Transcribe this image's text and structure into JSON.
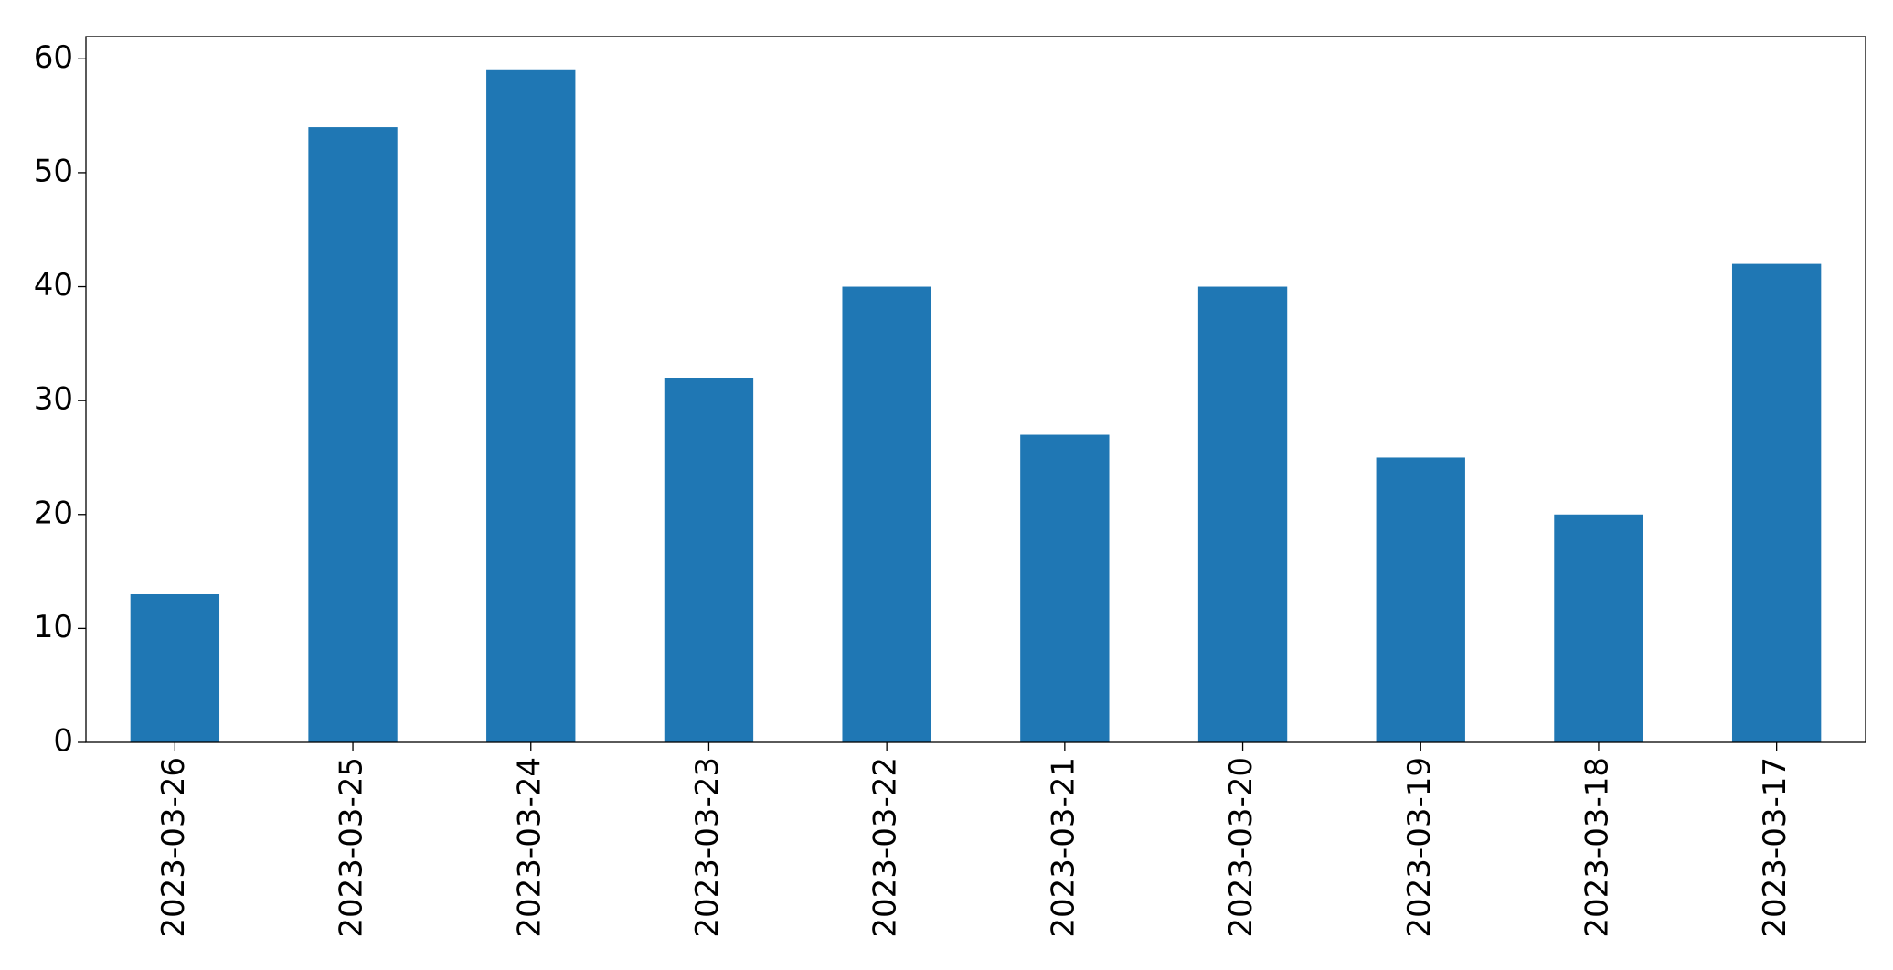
{
  "chart_data": {
    "type": "bar",
    "categories": [
      "2023-03-26",
      "2023-03-25",
      "2023-03-24",
      "2023-03-23",
      "2023-03-22",
      "2023-03-21",
      "2023-03-20",
      "2023-03-19",
      "2023-03-18",
      "2023-03-17"
    ],
    "values": [
      13,
      54,
      59,
      32,
      40,
      27,
      40,
      25,
      20,
      42
    ],
    "color": "#1f77b4",
    "ylim": [
      0,
      61.95
    ],
    "yticks": [
      0,
      10,
      20,
      30,
      40,
      50,
      60
    ],
    "grid": false
  }
}
